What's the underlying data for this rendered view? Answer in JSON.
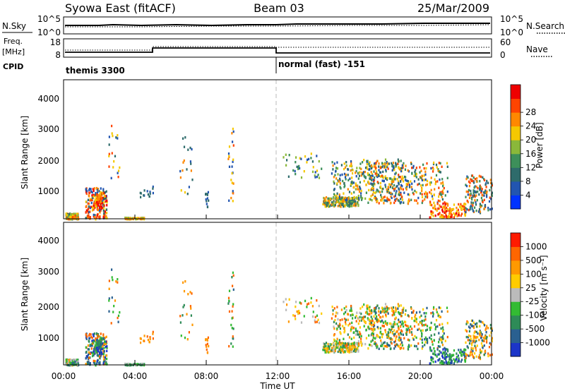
{
  "header": {
    "station": "Syowa East (fitACF)",
    "beam": "Beam 03",
    "date": "25/Mar/2009"
  },
  "noise_panel": {
    "left_label": "N.Sky",
    "left_ticks": [
      "10^5",
      "10^0"
    ],
    "right_ticks": [
      "10^5",
      "10^0"
    ],
    "right_label": "N.Search",
    "right_label_style": "dotted"
  },
  "freq_panel": {
    "left_label_line1": "Freq.",
    "left_label_line2": "[MHz]",
    "left_ticks": [
      "18",
      "8"
    ],
    "right_ticks": [
      "60",
      "0"
    ],
    "right_label": "Nave",
    "right_label_style": "dotted",
    "cpid_label": "CPID",
    "modes": [
      "themis 3300",
      "normal (fast) -151"
    ],
    "mode_change_hour": 12
  },
  "colors": {
    "power": [
      "#0033ff",
      "#2255b0",
      "#2e6b6b",
      "#3d8f5a",
      "#8ab83a",
      "#f5c800",
      "#ff8800",
      "#ff4400",
      "#ee0000"
    ],
    "velocity": [
      "#ff1b00",
      "#ff6600",
      "#ff9900",
      "#ffcc00",
      "#bbbbbb",
      "#33bb33",
      "#2e8b57",
      "#2a6090",
      "#1c35c8"
    ]
  },
  "chart_data": [
    {
      "type": "heatmap",
      "panel": "power",
      "ylabel": "Slant Range [km]",
      "ylim": [
        180,
        4600
      ],
      "yticks": [
        "1000",
        "2000",
        "3000",
        "4000"
      ],
      "xlim": [
        0,
        24
      ],
      "xticks": [
        "00:00",
        "04:00",
        "08:00",
        "12:00",
        "16:00",
        "20:00",
        "00:00"
      ],
      "colorbar": {
        "label": "Power [dB]",
        "range": [
          0,
          32
        ],
        "ticks": [
          "4",
          "8",
          "12",
          "16",
          "20",
          "24",
          "28"
        ]
      },
      "grid": false,
      "legend": "right"
    },
    {
      "type": "heatmap",
      "panel": "velocity",
      "ylabel": "Slant Range [km]",
      "ylim": [
        180,
        4600
      ],
      "yticks": [
        "1000",
        "2000",
        "3000",
        "4000"
      ],
      "xlim": [
        0,
        24
      ],
      "xticks": [
        "00:00",
        "04:00",
        "08:00",
        "12:00",
        "16:00",
        "20:00",
        "00:00"
      ],
      "xlabel": "Time UT",
      "colorbar": {
        "label": "Velocity [m s⁻¹]",
        "ticks": [
          "1000",
          "500",
          "100",
          "25",
          "-25",
          "-100",
          "-500",
          "-1000"
        ]
      },
      "grid": false,
      "legend": "right"
    }
  ]
}
